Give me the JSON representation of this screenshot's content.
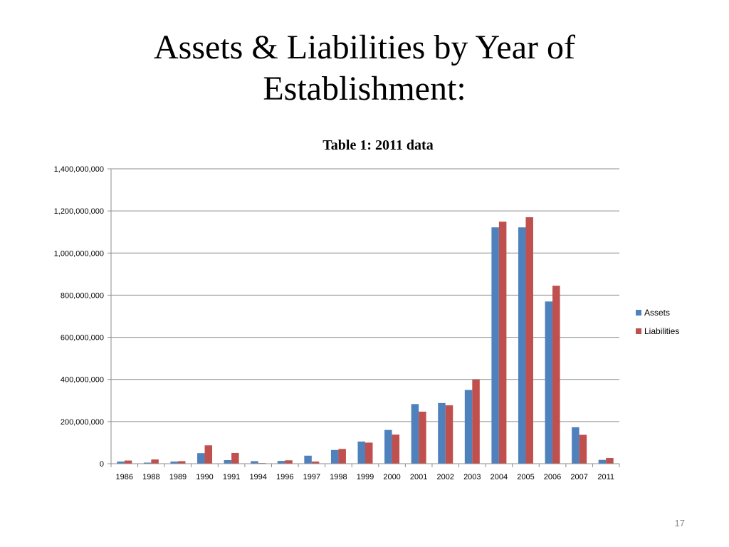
{
  "slide": {
    "title_line1": "Assets & Liabilities by Year of",
    "title_line2": "Establishment:",
    "page_number": "17"
  },
  "chart_data": {
    "type": "bar",
    "title": "Table 1: 2011 data",
    "xlabel": "",
    "ylabel": "",
    "ylim": [
      0,
      1400000000
    ],
    "yticks": [
      "0",
      "200,000,000",
      "400,000,000",
      "600,000,000",
      "800,000,000",
      "1,000,000,000",
      "1,200,000,000",
      "1,400,000,000"
    ],
    "grid": true,
    "legend_position": "right",
    "categories": [
      "1986",
      "1988",
      "1989",
      "1990",
      "1991",
      "1994",
      "1996",
      "1997",
      "1998",
      "1999",
      "2000",
      "2001",
      "2002",
      "2003",
      "2004",
      "2005",
      "2006",
      "2007",
      "2011"
    ],
    "series": [
      {
        "name": "Assets",
        "color": "#4F81BD",
        "values": [
          10000000,
          5000000,
          10000000,
          50000000,
          17000000,
          12000000,
          13000000,
          38000000,
          65000000,
          105000000,
          160000000,
          283000000,
          288000000,
          350000000,
          1122000000,
          1122000000,
          770000000,
          173000000,
          18000000
        ]
      },
      {
        "name": "Liabilities",
        "color": "#C0504D",
        "values": [
          15000000,
          20000000,
          12000000,
          87000000,
          51000000,
          3000000,
          16000000,
          10000000,
          70000000,
          100000000,
          138000000,
          247000000,
          277000000,
          400000000,
          1149000000,
          1170000000,
          845000000,
          137000000,
          27000000
        ]
      }
    ]
  }
}
